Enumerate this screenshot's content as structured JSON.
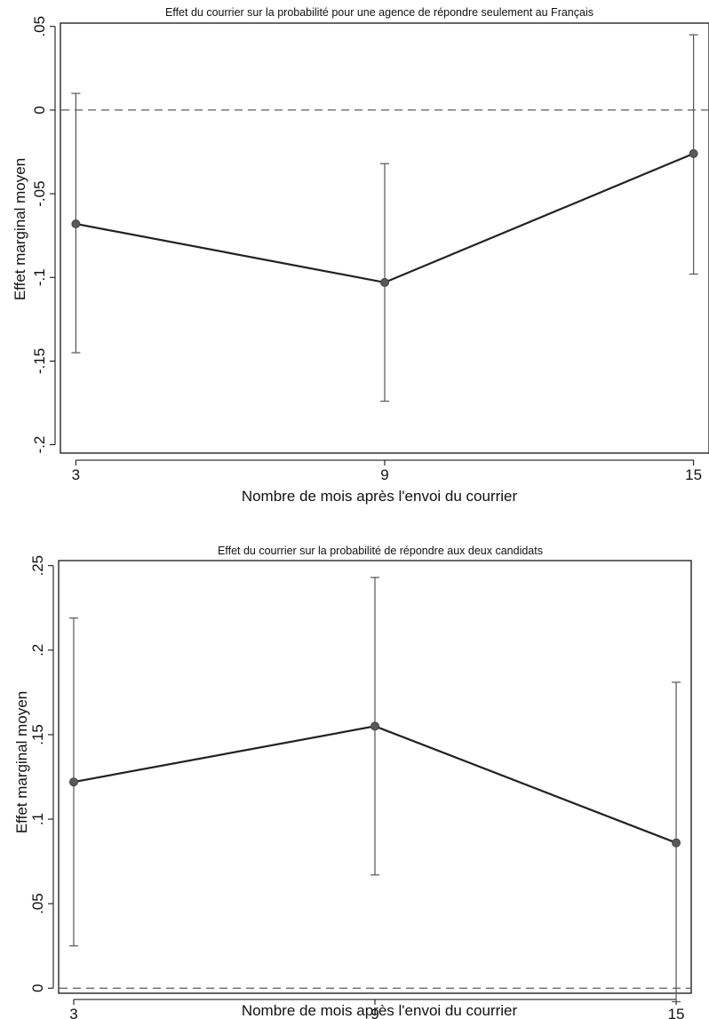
{
  "chart_data": [
    {
      "type": "line",
      "title": "Effet du courrier sur la probabilité pour une agence de répondre seulement au Français",
      "xlabel": "Nombre de mois après l'envoi du courrier",
      "ylabel": "Effet marginal moyen",
      "x": [
        3,
        9,
        15
      ],
      "x_tick_labels": [
        "3",
        "9",
        "15"
      ],
      "y_ticks": [
        0.05,
        0,
        -0.05,
        -0.1,
        -0.15,
        -0.2
      ],
      "y_tick_labels": [
        ".05",
        "0",
        "-.05",
        "-.1",
        "-.15",
        "-.2"
      ],
      "ylim": [
        -0.205,
        0.052
      ],
      "xlim": [
        2.7,
        15.3
      ],
      "reference_line": 0,
      "series": [
        {
          "values": [
            -0.068,
            -0.103,
            -0.026
          ],
          "ci_lower": [
            -0.145,
            -0.174,
            -0.098
          ],
          "ci_upper": [
            0.01,
            -0.032,
            0.045
          ]
        }
      ],
      "grid": false,
      "colors": {
        "line": "#222222",
        "marker": "#595959",
        "ci": "#555555",
        "reference": "#333333"
      }
    },
    {
      "type": "line",
      "title": "Effet du courrier sur la probabilité de répondre aux deux candidats",
      "xlabel": "Nombre de mois après l'envoi du courrier",
      "ylabel": "Effet marginal moyen",
      "x": [
        3,
        9,
        15
      ],
      "x_tick_labels": [
        "3",
        "9",
        "15"
      ],
      "y_ticks": [
        0.25,
        0.2,
        0.15,
        0.1,
        0.05,
        0
      ],
      "y_tick_labels": [
        ".25",
        ".2",
        ".15",
        ".1",
        ".05",
        "0"
      ],
      "ylim": [
        -0.003,
        0.253
      ],
      "xlim": [
        2.7,
        15.3
      ],
      "reference_line": 0,
      "series": [
        {
          "values": [
            0.122,
            0.155,
            0.086
          ],
          "ci_lower": [
            0.025,
            0.067,
            -0.008
          ],
          "ci_upper": [
            0.219,
            0.243,
            0.181
          ]
        }
      ],
      "grid": false,
      "colors": {
        "line": "#222222",
        "marker": "#595959",
        "ci": "#555555",
        "reference": "#333333"
      }
    }
  ]
}
